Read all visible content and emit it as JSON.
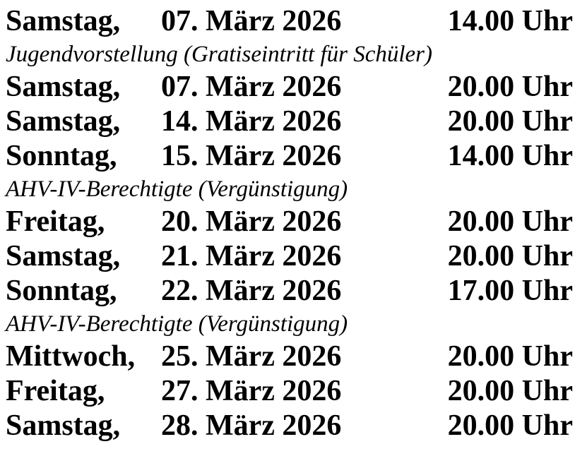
{
  "document": {
    "background_color": "#ffffff",
    "text_color": "#000000",
    "language": "de"
  },
  "schedule": {
    "rows": [
      {
        "kind": "show",
        "day": "Samstag,",
        "date": "07. März 2026",
        "time": "14.00 Uhr"
      },
      {
        "kind": "note",
        "text": "Jugendvorstellung (Gratiseintritt für Schüler)"
      },
      {
        "kind": "show",
        "day": "Samstag,",
        "date": "07. März 2026",
        "time": "20.00 Uhr"
      },
      {
        "kind": "show",
        "day": "Samstag,",
        "date": "14. März 2026",
        "time": "20.00 Uhr"
      },
      {
        "kind": "show",
        "day": "Sonntag,",
        "date": "15. März 2026",
        "time": "14.00 Uhr"
      },
      {
        "kind": "note",
        "text": "AHV-IV-Berechtigte (Vergünstigung)"
      },
      {
        "kind": "show",
        "day": "Freitag,",
        "date": "20. März 2026",
        "time": "20.00 Uhr"
      },
      {
        "kind": "show",
        "day": "Samstag,",
        "date": "21. März 2026",
        "time": "20.00 Uhr"
      },
      {
        "kind": "show",
        "day": "Sonntag,",
        "date": "22. März 2026",
        "time": "17.00 Uhr"
      },
      {
        "kind": "note",
        "text": "AHV-IV-Berechtigte (Vergünstigung)"
      },
      {
        "kind": "show",
        "day": "Mittwoch,",
        "date": "25. März 2026",
        "time": "20.00 Uhr"
      },
      {
        "kind": "show",
        "day": "Freitag,",
        "date": "27. März 2026",
        "time": "20.00 Uhr"
      },
      {
        "kind": "show",
        "day": "Samstag,",
        "date": "28. März 2026",
        "time": "20.00 Uhr"
      }
    ]
  }
}
